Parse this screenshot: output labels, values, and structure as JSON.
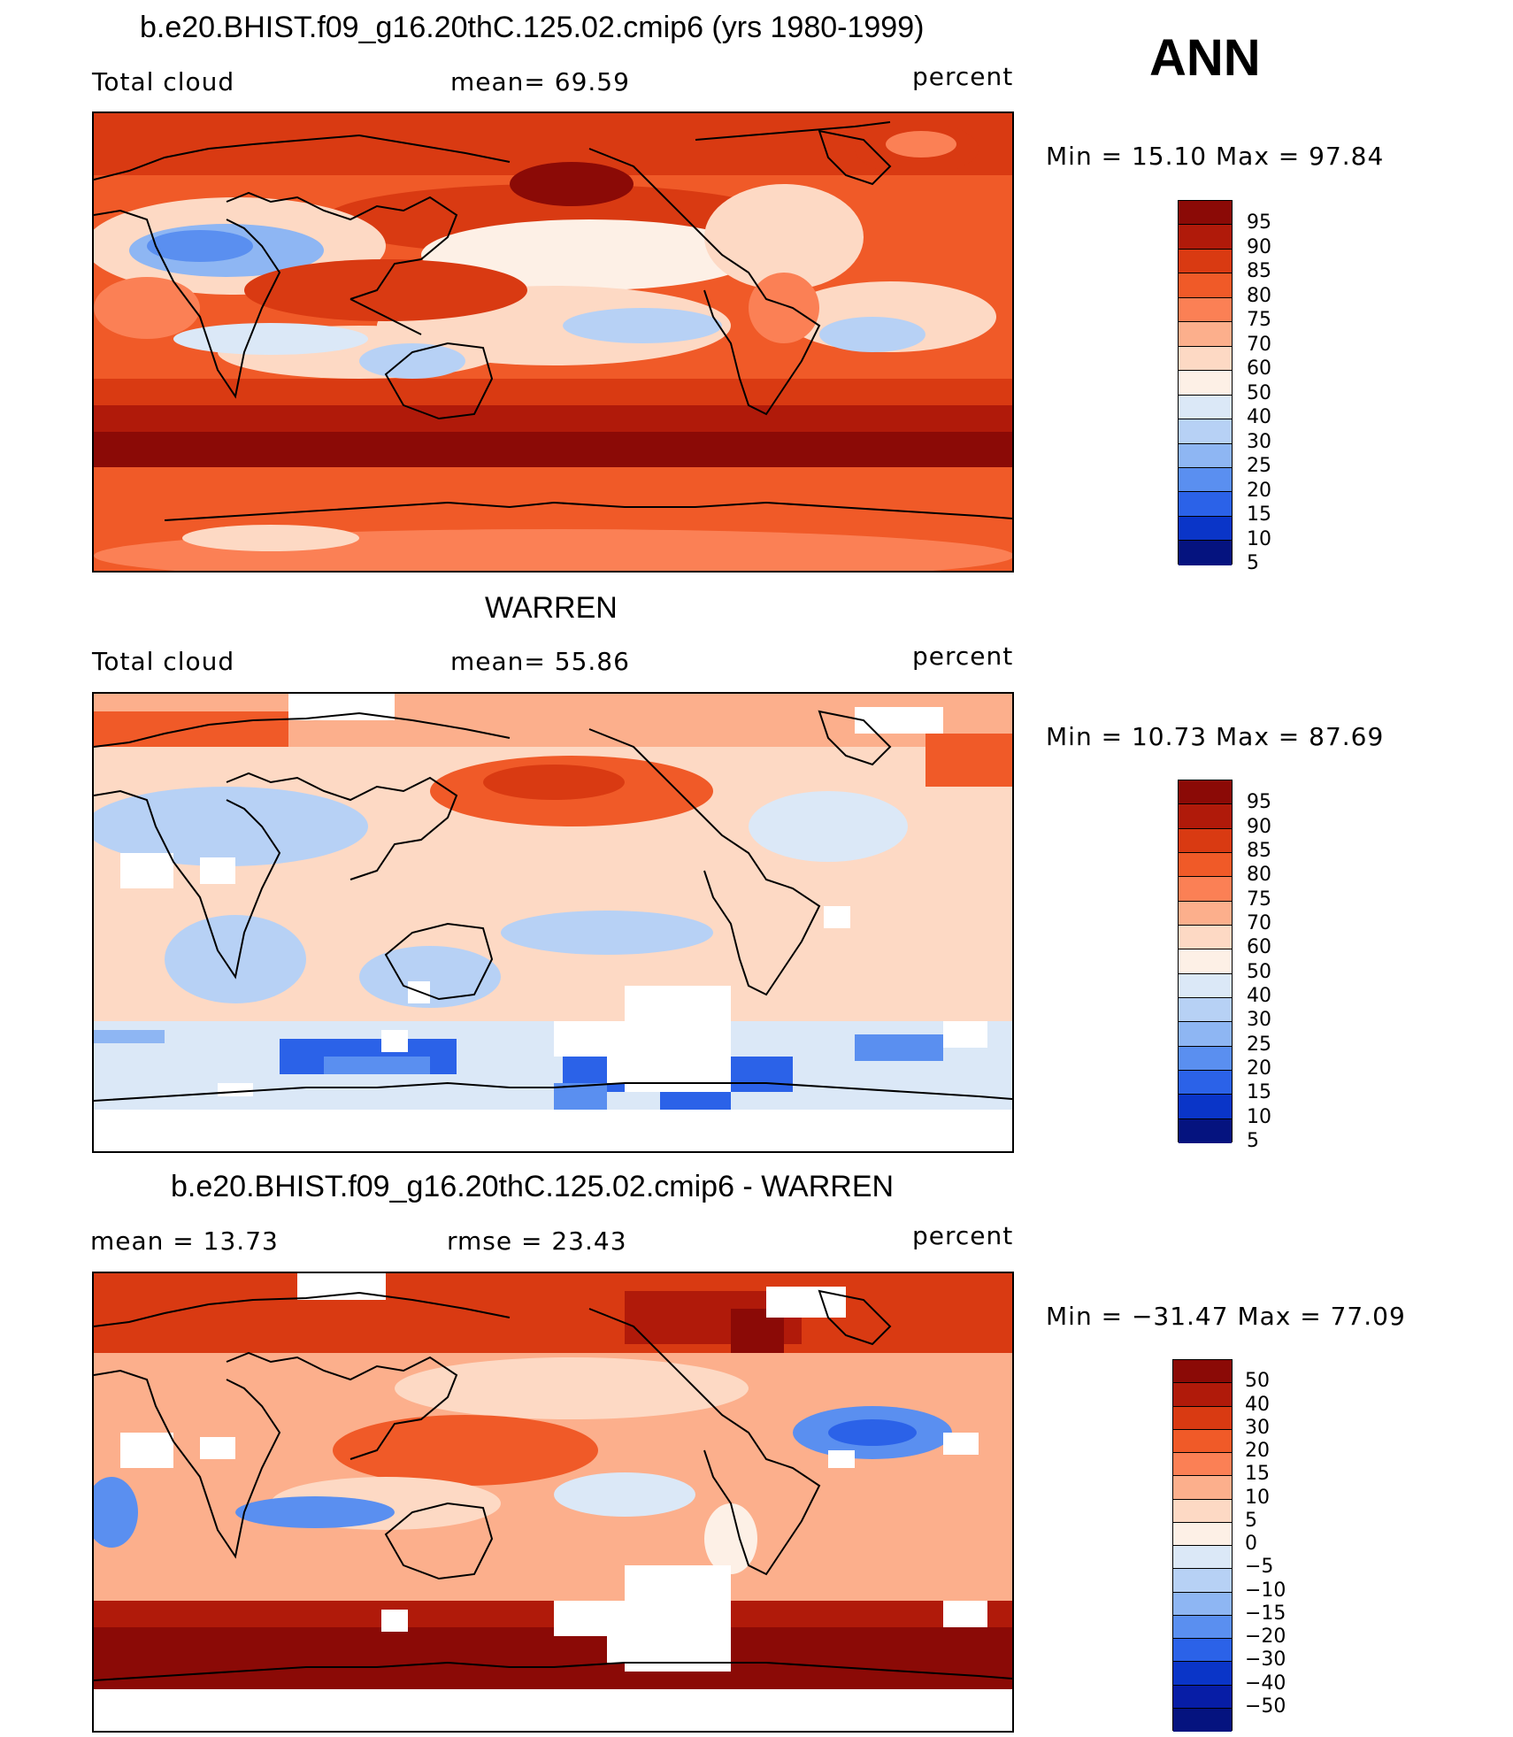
{
  "figure_label": "ANN",
  "panels": [
    {
      "title": "b.e20.BHIST.f09_g16.20thC.125.02.cmip6 (yrs 1980-1999)",
      "left_label": "Total cloud",
      "center_label": "mean=   69.59",
      "right_label": "percent",
      "minmax": "Min  =    15.10  Max  =    97.84",
      "colorbar_labels": [
        "95",
        "90",
        "85",
        "80",
        "75",
        "70",
        "60",
        "50",
        "40",
        "30",
        "25",
        "20",
        "15",
        "10",
        "5"
      ]
    },
    {
      "title": "WARREN",
      "left_label": "Total cloud",
      "center_label": "mean=   55.86",
      "right_label": "percent",
      "minmax": "Min  =    10.73  Max  =    87.69",
      "colorbar_labels": [
        "95",
        "90",
        "85",
        "80",
        "75",
        "70",
        "60",
        "50",
        "40",
        "30",
        "25",
        "20",
        "15",
        "10",
        "5"
      ]
    },
    {
      "title": "b.e20.BHIST.f09_g16.20thC.125.02.cmip6 - WARREN",
      "left_label": "mean  =    13.73",
      "center_label": "rmse  =    23.43",
      "right_label": "percent",
      "minmax": "Min  = −31.47  Max  =    77.09",
      "colorbar_labels": [
        "50",
        "40",
        "30",
        "20",
        "15",
        "10",
        "5",
        "0",
        "−5",
        "−10",
        "−15",
        "−20",
        "−30",
        "−40",
        "−50"
      ]
    }
  ],
  "colors": {
    "abs_scale": [
      "#8b0a06",
      "#b01a0a",
      "#d93a12",
      "#f05a28",
      "#fb8055",
      "#fcaf8c",
      "#fdd9c4",
      "#fdf0e6",
      "#dbe8f7",
      "#b7d1f5",
      "#8eb6f3",
      "#5a8ff0",
      "#2b62e8",
      "#0a35c8",
      "#05137f"
    ],
    "diff_scale": [
      "#8b0a06",
      "#b01a0a",
      "#d93a12",
      "#f05a28",
      "#fb8055",
      "#fcaf8c",
      "#fdd9c4",
      "#fdf0e6",
      "#dbe8f7",
      "#b7d1f5",
      "#8eb6f3",
      "#5a8ff0",
      "#2b62e8",
      "#0a35c8",
      "#071da6",
      "#05137f"
    ],
    "missing": "#ffffff"
  }
}
